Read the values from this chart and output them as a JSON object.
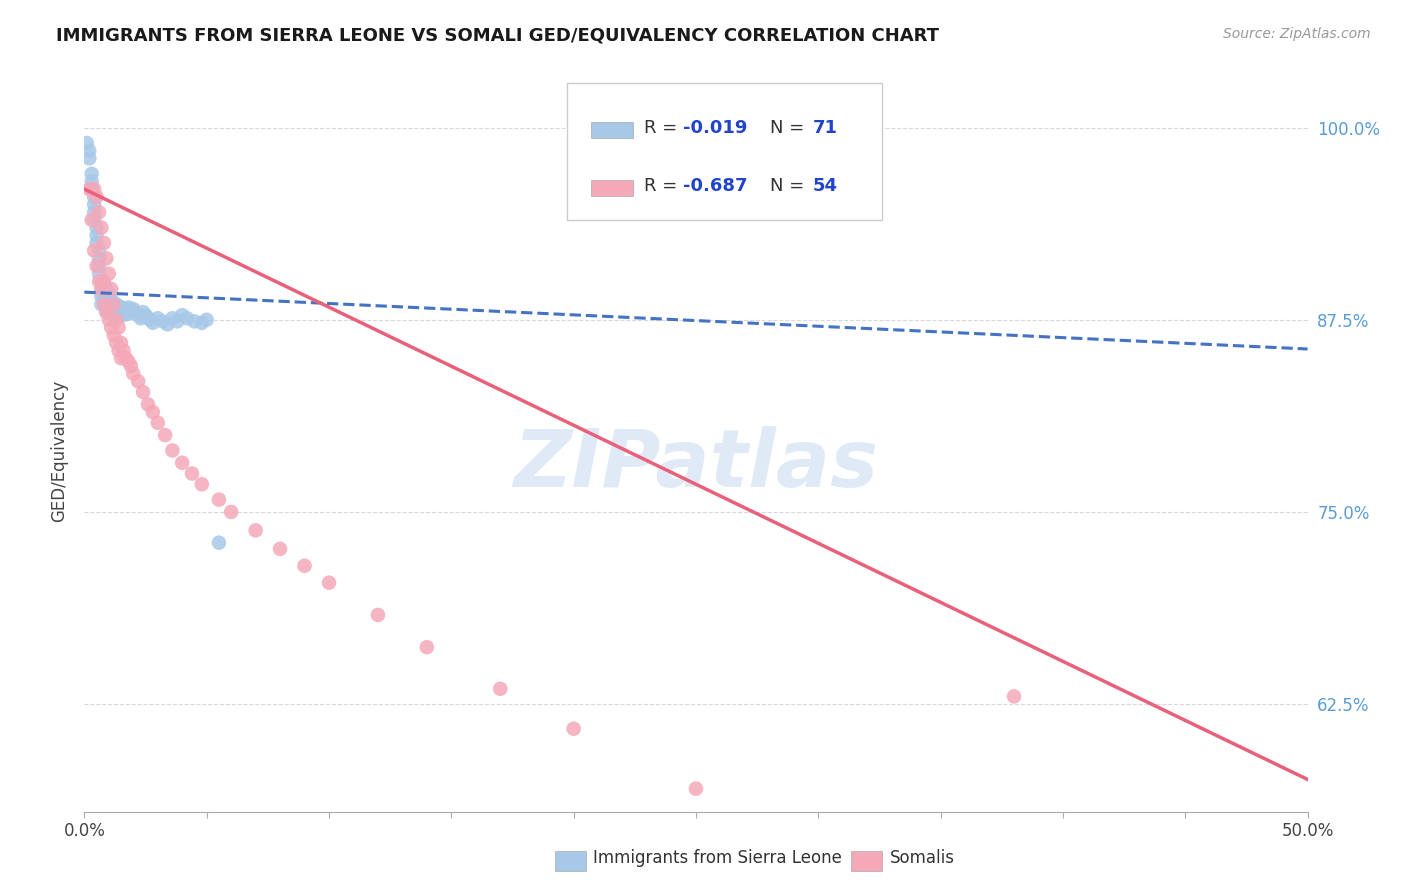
{
  "title": "IMMIGRANTS FROM SIERRA LEONE VS SOMALI GED/EQUIVALENCY CORRELATION CHART",
  "source": "Source: ZipAtlas.com",
  "ylabel": "GED/Equivalency",
  "xmin": 0.0,
  "xmax": 0.5,
  "ymin": 0.555,
  "ymax": 1.025,
  "yticks": [
    0.625,
    0.75,
    0.875,
    1.0
  ],
  "ytick_labels": [
    "62.5%",
    "75.0%",
    "87.5%",
    "100.0%"
  ],
  "xticks": [
    0.0,
    0.05,
    0.1,
    0.15,
    0.2,
    0.25,
    0.3,
    0.35,
    0.4,
    0.45,
    0.5
  ],
  "xtick_labels": [
    "0.0%",
    "",
    "",
    "",
    "",
    "",
    "",
    "",
    "",
    "",
    "50.0%"
  ],
  "sierra_leone_color": "#a8c8e8",
  "somali_color": "#f4a8b8",
  "sierra_leone_line_color": "#4472c4",
  "somali_line_color": "#e8607a",
  "r_color": "#2244cc",
  "watermark": "ZIPatlas",
  "background_color": "#ffffff",
  "grid_color": "#d8d8d8",
  "sierra_leone_x": [
    0.001,
    0.002,
    0.002,
    0.003,
    0.003,
    0.003,
    0.004,
    0.004,
    0.004,
    0.004,
    0.005,
    0.005,
    0.005,
    0.006,
    0.006,
    0.006,
    0.006,
    0.007,
    0.007,
    0.007,
    0.007,
    0.008,
    0.008,
    0.008,
    0.008,
    0.009,
    0.009,
    0.009,
    0.009,
    0.01,
    0.01,
    0.01,
    0.01,
    0.011,
    0.011,
    0.011,
    0.012,
    0.012,
    0.012,
    0.013,
    0.013,
    0.014,
    0.014,
    0.015,
    0.015,
    0.016,
    0.016,
    0.017,
    0.018,
    0.018,
    0.019,
    0.02,
    0.021,
    0.022,
    0.023,
    0.024,
    0.025,
    0.026,
    0.027,
    0.028,
    0.03,
    0.032,
    0.034,
    0.036,
    0.038,
    0.04,
    0.042,
    0.045,
    0.048,
    0.05,
    0.055
  ],
  "sierra_leone_y": [
    0.99,
    0.985,
    0.98,
    0.97,
    0.965,
    0.96,
    0.955,
    0.95,
    0.945,
    0.94,
    0.935,
    0.93,
    0.925,
    0.92,
    0.915,
    0.91,
    0.905,
    0.9,
    0.895,
    0.89,
    0.885,
    0.9,
    0.895,
    0.89,
    0.885,
    0.895,
    0.89,
    0.885,
    0.88,
    0.892,
    0.888,
    0.884,
    0.88,
    0.888,
    0.884,
    0.88,
    0.886,
    0.882,
    0.878,
    0.885,
    0.881,
    0.884,
    0.88,
    0.883,
    0.879,
    0.882,
    0.878,
    0.881,
    0.883,
    0.879,
    0.88,
    0.882,
    0.88,
    0.878,
    0.876,
    0.88,
    0.878,
    0.876,
    0.875,
    0.873,
    0.876,
    0.874,
    0.872,
    0.876,
    0.874,
    0.878,
    0.876,
    0.874,
    0.873,
    0.875,
    0.73
  ],
  "somali_x": [
    0.002,
    0.003,
    0.004,
    0.004,
    0.005,
    0.005,
    0.006,
    0.006,
    0.007,
    0.007,
    0.008,
    0.008,
    0.008,
    0.009,
    0.009,
    0.01,
    0.01,
    0.011,
    0.011,
    0.012,
    0.012,
    0.013,
    0.013,
    0.014,
    0.014,
    0.015,
    0.015,
    0.016,
    0.017,
    0.018,
    0.019,
    0.02,
    0.022,
    0.024,
    0.026,
    0.028,
    0.03,
    0.033,
    0.036,
    0.04,
    0.044,
    0.048,
    0.055,
    0.06,
    0.07,
    0.08,
    0.09,
    0.1,
    0.12,
    0.14,
    0.17,
    0.2,
    0.25,
    0.38
  ],
  "somali_y": [
    0.96,
    0.94,
    0.96,
    0.92,
    0.955,
    0.91,
    0.945,
    0.9,
    0.935,
    0.895,
    0.925,
    0.9,
    0.885,
    0.915,
    0.88,
    0.905,
    0.875,
    0.895,
    0.87,
    0.885,
    0.865,
    0.875,
    0.86,
    0.87,
    0.855,
    0.86,
    0.85,
    0.855,
    0.85,
    0.848,
    0.845,
    0.84,
    0.835,
    0.828,
    0.82,
    0.815,
    0.808,
    0.8,
    0.79,
    0.782,
    0.775,
    0.768,
    0.758,
    0.75,
    0.738,
    0.726,
    0.715,
    0.704,
    0.683,
    0.662,
    0.635,
    0.609,
    0.57,
    0.63
  ],
  "sl_line_x": [
    0.0,
    0.5
  ],
  "sl_line_y": [
    0.893,
    0.856
  ],
  "so_line_x": [
    0.0,
    0.5
  ],
  "so_line_y": [
    0.96,
    0.576
  ]
}
